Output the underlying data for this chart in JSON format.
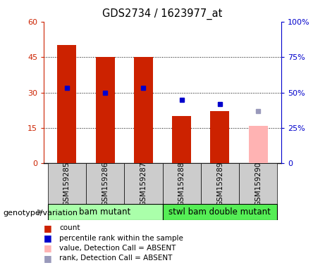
{
  "title": "GDS2734 / 1623977_at",
  "samples": [
    "GSM159285",
    "GSM159286",
    "GSM159287",
    "GSM159288",
    "GSM159289",
    "GSM159290"
  ],
  "count_values": [
    50,
    45,
    45,
    20,
    22,
    null
  ],
  "count_absent": [
    null,
    null,
    null,
    null,
    null,
    16
  ],
  "percentile_values_left": [
    32,
    30,
    32,
    27,
    25,
    null
  ],
  "percentile_absent_left": [
    null,
    null,
    null,
    null,
    null,
    22
  ],
  "ylim_left": [
    0,
    60
  ],
  "ylim_right": [
    0,
    100
  ],
  "yticks_left": [
    0,
    15,
    30,
    45,
    60
  ],
  "yticks_right": [
    0,
    25,
    50,
    75,
    100
  ],
  "yticklabels_left": [
    "0",
    "15",
    "30",
    "45",
    "60"
  ],
  "yticklabels_right": [
    "0",
    "25%",
    "50%",
    "75%",
    "100%"
  ],
  "group1_label": "bam mutant",
  "group2_label": "stwl bam double mutant",
  "genotype_label": "genotype/variation",
  "bar_color_present": "#cc2200",
  "bar_color_absent": "#ffb3b3",
  "dot_color_present": "#0000cc",
  "dot_color_absent": "#9999bb",
  "bar_width": 0.5,
  "group1_bg": "#aaffaa",
  "group2_bg": "#55ee55",
  "sample_bg": "#cccccc",
  "legend_items": [
    {
      "label": "count",
      "color": "#cc2200"
    },
    {
      "label": "percentile rank within the sample",
      "color": "#0000cc"
    },
    {
      "label": "value, Detection Call = ABSENT",
      "color": "#ffb3b3"
    },
    {
      "label": "rank, Detection Call = ABSENT",
      "color": "#9999bb"
    }
  ]
}
